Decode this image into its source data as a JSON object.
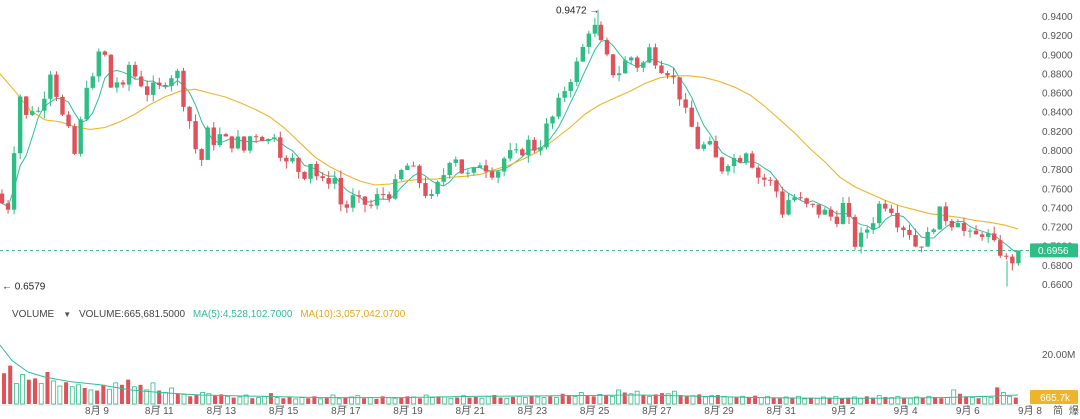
{
  "chart_data": {
    "type": "candlestick",
    "colors": {
      "up": "#2ebd85",
      "down": "#e0515a",
      "ma5": "#2fbf9b",
      "ma10": "#f0b429",
      "last_price": "#2ebd85",
      "last_volume": "#f0b429"
    },
    "y_ticks": [
      "0.9400",
      "0.9200",
      "0.9000",
      "0.8800",
      "0.8600",
      "0.8400",
      "0.8200",
      "0.8000",
      "0.7800",
      "0.7600",
      "0.7400",
      "0.7200",
      "0.7000",
      "0.6800",
      "0.6600"
    ],
    "ylim": [
      0.648,
      0.952
    ],
    "x_ticks": [
      "8月 9",
      "8月 11",
      "8月 13",
      "8月 15",
      "8月 17",
      "8月 19",
      "8月 21",
      "8月 23",
      "8月 25",
      "8月 27",
      "8月 29",
      "8月 31",
      "9月 2",
      "9月 4",
      "9月 6",
      "9月 8"
    ],
    "x_extra": [
      "简",
      "爆"
    ],
    "high_annotation": "0.9472 →",
    "low_annotation": "← 0.6579",
    "last_price": "0.6956",
    "volume_legend": {
      "label": "VOLUME",
      "volume": "VOLUME:665,681.5000",
      "ma5": "MA(5):4,528,102.7000",
      "ma10": "MA(10):3,057,042.0700"
    },
    "volume_axis_tick": "20.00M",
    "last_volume": "665.7k",
    "price_path": [
      [
        0,
        0.755
      ],
      [
        4,
        0.735
      ],
      [
        10,
        0.745
      ],
      [
        16,
        0.83
      ],
      [
        22,
        0.87
      ],
      [
        28,
        0.82
      ],
      [
        34,
        0.855
      ],
      [
        40,
        0.835
      ],
      [
        46,
        0.87
      ],
      [
        52,
        0.89
      ],
      [
        58,
        0.85
      ],
      [
        64,
        0.83
      ],
      [
        70,
        0.815
      ],
      [
        76,
        0.79
      ],
      [
        82,
        0.84
      ],
      [
        88,
        0.88
      ],
      [
        94,
        0.87
      ],
      [
        100,
        0.91
      ],
      [
        106,
        0.895
      ],
      [
        112,
        0.86
      ],
      [
        118,
        0.875
      ],
      [
        124,
        0.86
      ],
      [
        130,
        0.895
      ],
      [
        136,
        0.875
      ],
      [
        142,
        0.87
      ],
      [
        148,
        0.86
      ],
      [
        154,
        0.865
      ],
      [
        160,
        0.865
      ],
      [
        166,
        0.875
      ],
      [
        172,
        0.88
      ],
      [
        178,
        0.88
      ],
      [
        184,
        0.85
      ],
      [
        190,
        0.83
      ],
      [
        196,
        0.8
      ],
      [
        202,
        0.79
      ],
      [
        208,
        0.82
      ],
      [
        214,
        0.81
      ],
      [
        220,
        0.815
      ],
      [
        226,
        0.81
      ],
      [
        232,
        0.808
      ],
      [
        238,
        0.81
      ],
      [
        244,
        0.8
      ],
      [
        250,
        0.815
      ],
      [
        256,
        0.818
      ],
      [
        262,
        0.815
      ],
      [
        268,
        0.81
      ],
      [
        274,
        0.82
      ],
      [
        280,
        0.8
      ],
      [
        286,
        0.785
      ],
      [
        292,
        0.79
      ],
      [
        298,
        0.78
      ],
      [
        304,
        0.775
      ],
      [
        310,
        0.79
      ],
      [
        316,
        0.775
      ],
      [
        322,
        0.765
      ],
      [
        328,
        0.77
      ],
      [
        334,
        0.775
      ],
      [
        340,
        0.745
      ],
      [
        346,
        0.74
      ],
      [
        352,
        0.75
      ],
      [
        358,
        0.745
      ],
      [
        364,
        0.745
      ],
      [
        370,
        0.74
      ],
      [
        376,
        0.75
      ],
      [
        382,
        0.755
      ],
      [
        388,
        0.755
      ],
      [
        394,
        0.76
      ],
      [
        400,
        0.775
      ],
      [
        406,
        0.785
      ],
      [
        412,
        0.78
      ],
      [
        418,
        0.77
      ],
      [
        424,
        0.76
      ],
      [
        430,
        0.745
      ],
      [
        436,
        0.76
      ],
      [
        442,
        0.77
      ],
      [
        448,
        0.79
      ],
      [
        454,
        0.8
      ],
      [
        460,
        0.78
      ],
      [
        466,
        0.775
      ],
      [
        472,
        0.77
      ],
      [
        478,
        0.79
      ],
      [
        484,
        0.785
      ],
      [
        490,
        0.78
      ],
      [
        496,
        0.775
      ],
      [
        502,
        0.79
      ],
      [
        508,
        0.795
      ],
      [
        514,
        0.795
      ],
      [
        520,
        0.795
      ],
      [
        526,
        0.81
      ],
      [
        532,
        0.805
      ],
      [
        538,
        0.8
      ],
      [
        544,
        0.82
      ],
      [
        550,
        0.83
      ],
      [
        556,
        0.84
      ],
      [
        562,
        0.86
      ],
      [
        568,
        0.87
      ],
      [
        574,
        0.885
      ],
      [
        580,
        0.895
      ],
      [
        586,
        0.92
      ],
      [
        592,
        0.935
      ],
      [
        598,
        0.92
      ],
      [
        604,
        0.9
      ],
      [
        610,
        0.89
      ],
      [
        616,
        0.875
      ],
      [
        622,
        0.89
      ],
      [
        628,
        0.895
      ],
      [
        634,
        0.9
      ],
      [
        640,
        0.88
      ],
      [
        646,
        0.9
      ],
      [
        652,
        0.91
      ],
      [
        658,
        0.885
      ],
      [
        664,
        0.89
      ],
      [
        670,
        0.88
      ],
      [
        676,
        0.87
      ],
      [
        682,
        0.85
      ],
      [
        688,
        0.83
      ],
      [
        694,
        0.82
      ],
      [
        700,
        0.795
      ],
      [
        706,
        0.81
      ],
      [
        712,
        0.8
      ],
      [
        718,
        0.785
      ],
      [
        724,
        0.78
      ],
      [
        730,
        0.795
      ],
      [
        736,
        0.79
      ],
      [
        742,
        0.795
      ],
      [
        748,
        0.805
      ],
      [
        754,
        0.78
      ],
      [
        760,
        0.77
      ],
      [
        766,
        0.77
      ],
      [
        772,
        0.765
      ],
      [
        778,
        0.755
      ],
      [
        784,
        0.73
      ],
      [
        790,
        0.755
      ],
      [
        796,
        0.75
      ],
      [
        802,
        0.745
      ],
      [
        808,
        0.74
      ],
      [
        814,
        0.74
      ],
      [
        820,
        0.735
      ],
      [
        826,
        0.735
      ],
      [
        832,
        0.73
      ],
      [
        838,
        0.73
      ],
      [
        844,
        0.745
      ],
      [
        850,
        0.72
      ],
      [
        856,
        0.7
      ],
      [
        862,
        0.71
      ],
      [
        868,
        0.72
      ],
      [
        874,
        0.73
      ],
      [
        880,
        0.745
      ],
      [
        886,
        0.745
      ],
      [
        892,
        0.74
      ],
      [
        898,
        0.725
      ],
      [
        904,
        0.72
      ],
      [
        910,
        0.715
      ],
      [
        916,
        0.7
      ],
      [
        922,
        0.705
      ],
      [
        928,
        0.71
      ],
      [
        934,
        0.725
      ],
      [
        940,
        0.735
      ],
      [
        946,
        0.73
      ],
      [
        952,
        0.725
      ],
      [
        958,
        0.73
      ],
      [
        964,
        0.715
      ],
      [
        970,
        0.71
      ],
      [
        976,
        0.71
      ],
      [
        982,
        0.715
      ],
      [
        988,
        0.71
      ],
      [
        994,
        0.7
      ],
      [
        1000,
        0.695
      ],
      [
        1006,
        0.685
      ],
      [
        1012,
        0.685
      ],
      [
        1018,
        0.6956
      ]
    ],
    "ma_slow_path": [
      [
        0,
        0.88
      ],
      [
        15,
        0.862
      ],
      [
        30,
        0.842
      ],
      [
        45,
        0.832
      ],
      [
        60,
        0.83
      ],
      [
        75,
        0.825
      ],
      [
        90,
        0.822
      ],
      [
        105,
        0.824
      ],
      [
        120,
        0.83
      ],
      [
        135,
        0.838
      ],
      [
        150,
        0.848
      ],
      [
        165,
        0.856
      ],
      [
        180,
        0.862
      ],
      [
        195,
        0.864
      ],
      [
        210,
        0.86
      ],
      [
        225,
        0.856
      ],
      [
        240,
        0.85
      ],
      [
        255,
        0.843
      ],
      [
        270,
        0.835
      ],
      [
        285,
        0.823
      ],
      [
        300,
        0.808
      ],
      [
        315,
        0.793
      ],
      [
        330,
        0.783
      ],
      [
        345,
        0.775
      ],
      [
        360,
        0.768
      ],
      [
        375,
        0.764
      ],
      [
        390,
        0.765
      ],
      [
        405,
        0.768
      ],
      [
        420,
        0.77
      ],
      [
        435,
        0.77
      ],
      [
        450,
        0.772
      ],
      [
        465,
        0.773
      ],
      [
        480,
        0.775
      ],
      [
        495,
        0.78
      ],
      [
        510,
        0.785
      ],
      [
        525,
        0.792
      ],
      [
        540,
        0.8
      ],
      [
        555,
        0.812
      ],
      [
        570,
        0.824
      ],
      [
        585,
        0.838
      ],
      [
        600,
        0.848
      ],
      [
        615,
        0.855
      ],
      [
        630,
        0.862
      ],
      [
        645,
        0.87
      ],
      [
        660,
        0.876
      ],
      [
        675,
        0.878
      ],
      [
        690,
        0.878
      ],
      [
        705,
        0.876
      ],
      [
        720,
        0.872
      ],
      [
        735,
        0.866
      ],
      [
        750,
        0.858
      ],
      [
        765,
        0.846
      ],
      [
        780,
        0.832
      ],
      [
        795,
        0.818
      ],
      [
        810,
        0.802
      ],
      [
        825,
        0.788
      ],
      [
        840,
        0.772
      ],
      [
        855,
        0.762
      ],
      [
        870,
        0.755
      ],
      [
        885,
        0.748
      ],
      [
        900,
        0.742
      ],
      [
        915,
        0.738
      ],
      [
        930,
        0.734
      ],
      [
        945,
        0.732
      ],
      [
        960,
        0.73
      ],
      [
        975,
        0.727
      ],
      [
        990,
        0.725
      ],
      [
        1005,
        0.722
      ],
      [
        1018,
        0.718
      ]
    ],
    "volume_ma_path": [
      [
        0,
        0.92
      ],
      [
        12,
        0.68
      ],
      [
        28,
        0.5
      ],
      [
        45,
        0.42
      ],
      [
        70,
        0.35
      ],
      [
        100,
        0.3
      ],
      [
        130,
        0.22
      ],
      [
        160,
        0.18
      ],
      [
        200,
        0.14
      ],
      [
        260,
        0.12
      ],
      [
        320,
        0.1
      ],
      [
        400,
        0.1
      ],
      [
        480,
        0.12
      ],
      [
        560,
        0.13
      ],
      [
        640,
        0.14
      ],
      [
        700,
        0.12
      ],
      [
        760,
        0.1
      ],
      [
        820,
        0.09
      ],
      [
        880,
        0.09
      ],
      [
        940,
        0.1
      ],
      [
        990,
        0.12
      ],
      [
        1018,
        0.14
      ]
    ],
    "volume_levels": [
      0.48,
      0.6,
      0.32,
      0.46,
      0.38,
      0.4,
      0.32,
      0.5,
      0.36,
      0.28,
      0.34,
      0.27,
      0.3,
      0.25,
      0.22,
      0.21,
      0.3,
      0.23,
      0.33,
      0.3,
      0.38,
      0.27,
      0.3,
      0.22,
      0.33,
      0.21,
      0.18,
      0.25,
      0.16,
      0.15,
      0.12,
      0.14,
      0.18,
      0.16,
      0.13,
      0.15,
      0.12,
      0.1,
      0.11,
      0.14,
      0.09,
      0.1,
      0.12,
      0.17,
      0.1,
      0.09,
      0.11,
      0.08,
      0.1,
      0.09,
      0.12,
      0.08,
      0.1,
      0.14,
      0.09,
      0.1,
      0.11,
      0.13,
      0.09,
      0.1,
      0.08,
      0.12,
      0.1,
      0.09,
      0.1,
      0.12,
      0.11,
      0.09,
      0.14,
      0.1,
      0.12,
      0.11,
      0.09,
      0.1,
      0.13,
      0.1,
      0.11,
      0.09,
      0.12,
      0.14,
      0.1,
      0.09,
      0.11,
      0.12,
      0.1,
      0.13,
      0.11,
      0.1,
      0.12,
      0.1,
      0.16,
      0.14,
      0.12,
      0.18,
      0.13,
      0.12,
      0.15,
      0.14,
      0.12,
      0.22,
      0.18,
      0.16,
      0.2,
      0.14,
      0.12,
      0.15,
      0.17,
      0.16,
      0.2,
      0.14,
      0.12,
      0.13,
      0.15,
      0.11,
      0.13,
      0.14,
      0.12,
      0.11,
      0.1,
      0.12,
      0.11,
      0.13,
      0.1,
      0.12,
      0.1,
      0.09,
      0.11,
      0.1,
      0.12,
      0.08,
      0.1,
      0.09,
      0.11,
      0.1,
      0.12,
      0.09,
      0.1,
      0.11,
      0.09,
      0.12,
      0.1,
      0.13,
      0.11,
      0.1,
      0.12,
      0.1,
      0.09,
      0.11,
      0.1,
      0.12,
      0.11,
      0.09,
      0.1,
      0.22,
      0.16,
      0.12,
      0.1,
      0.09,
      0.12,
      0.1,
      0.26,
      0.18,
      0.12,
      0.1
    ],
    "candle_seed": 7
  }
}
